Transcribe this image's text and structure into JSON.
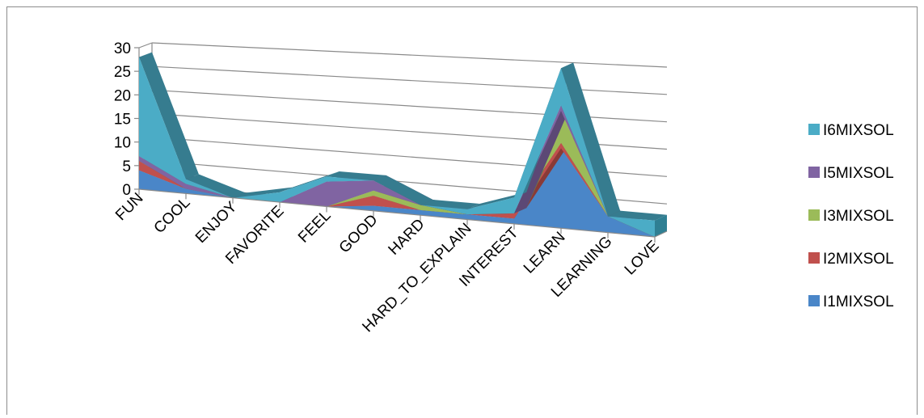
{
  "chart_data": {
    "type": "area",
    "subtype": "3d-stacked-area",
    "categories": [
      "FUN",
      "COOL",
      "ENJOY",
      "FAVORITE",
      "FEEL",
      "GOOD",
      "HARD",
      "HARD_TO_EXPLAIN",
      "INTEREST",
      "LEARN",
      "LEARNING",
      "LOVE"
    ],
    "series": [
      {
        "name": "I1MIXSOL",
        "color": "#4a86c8",
        "values": [
          4,
          1,
          0,
          0,
          0,
          1,
          1,
          1,
          1,
          15,
          3,
          0
        ]
      },
      {
        "name": "I2MIXSOL",
        "color": "#c0504d",
        "values": [
          2,
          0,
          0,
          0,
          0,
          2,
          0,
          0,
          1,
          1,
          0,
          0
        ]
      },
      {
        "name": "I3MIXSOL",
        "color": "#9bbb59",
        "values": [
          0,
          0,
          0,
          0,
          0,
          1,
          1,
          0,
          0,
          6,
          0,
          0
        ]
      },
      {
        "name": "I5MIXSOL",
        "color": "#8064a2",
        "values": [
          1,
          1,
          0,
          0,
          5,
          2,
          0,
          0,
          0,
          1,
          0,
          0
        ]
      },
      {
        "name": "I6MIXSOL",
        "color": "#4bacc6",
        "values": [
          21,
          1,
          0,
          2,
          1,
          0,
          0,
          1,
          3,
          7,
          0,
          3
        ]
      }
    ],
    "ylim": [
      0,
      30
    ],
    "yticks": [
      0,
      5,
      10,
      15,
      20,
      25,
      30
    ],
    "grid": true,
    "legend_position": "right",
    "legend_order": [
      "I6MIXSOL",
      "I5MIXSOL",
      "I3MIXSOL",
      "I2MIXSOL",
      "I1MIXSOL"
    ],
    "title": "",
    "xlabel": "",
    "ylabel": ""
  }
}
